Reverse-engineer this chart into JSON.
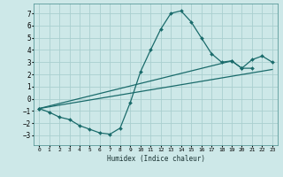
{
  "xlabel": "Humidex (Indice chaleur)",
  "bg_color": "#cde8e8",
  "grid_color": "#aacfcf",
  "line_color": "#1a6b6b",
  "xlim": [
    -0.5,
    23.5
  ],
  "ylim": [
    -3.8,
    7.8
  ],
  "xticks": [
    0,
    1,
    2,
    3,
    4,
    5,
    6,
    7,
    8,
    9,
    10,
    11,
    12,
    13,
    14,
    15,
    16,
    17,
    18,
    19,
    20,
    21,
    22,
    23
  ],
  "yticks": [
    -3,
    -2,
    -1,
    0,
    1,
    2,
    3,
    4,
    5,
    6,
    7
  ],
  "series": [
    {
      "x": [
        0,
        1,
        2,
        3,
        4,
        5,
        6,
        7,
        8,
        9,
        10,
        11,
        12,
        13,
        14,
        15,
        16,
        17,
        18,
        19,
        20,
        21,
        22
      ],
      "y": [
        -0.8,
        -1.1,
        -1.5,
        -1.7,
        -2.2,
        -2.5,
        -2.8,
        -2.9,
        -2.4,
        -0.3,
        2.2,
        4.0,
        5.7,
        7.0,
        7.2,
        6.3,
        5.0,
        3.7,
        3.0,
        3.1,
        2.5,
        2.5,
        null
      ],
      "marker": true
    },
    {
      "x": [
        0,
        19,
        20,
        21,
        22,
        23
      ],
      "y": [
        -0.8,
        3.1,
        2.5,
        3.2,
        3.5,
        3.0
      ],
      "marker": true
    },
    {
      "x": [
        0,
        23
      ],
      "y": [
        -0.8,
        2.4
      ],
      "marker": false
    }
  ]
}
